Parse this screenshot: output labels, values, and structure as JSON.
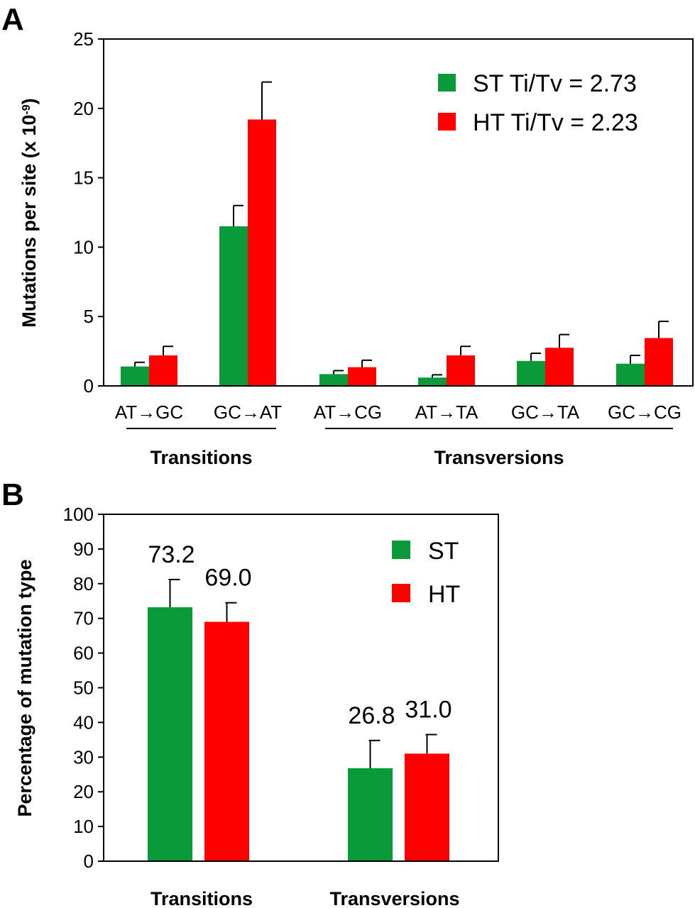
{
  "chart_data": [
    {
      "panel": "A",
      "type": "bar",
      "ylabel": "Mutations per site (x 10",
      "ylabel_exp": "-9",
      "ylabel_close": ")",
      "ylim": [
        0,
        25
      ],
      "yticks": [
        "0",
        "5",
        "10",
        "15",
        "20",
        "25"
      ],
      "categories": [
        "AT→GC",
        "GC→AT",
        "AT→CG",
        "AT→TA",
        "GC→TA",
        "GC→CG"
      ],
      "groups": [
        {
          "label": "Transitions",
          "from": 0,
          "to": 1
        },
        {
          "label": "Transversions",
          "from": 2,
          "to": 5
        }
      ],
      "series": [
        {
          "name": "ST Ti/Tv = 2.73",
          "color": "#0a9a3a",
          "values": [
            1.4,
            11.5,
            0.85,
            0.6,
            1.8,
            1.6
          ],
          "errors": [
            0.3,
            1.5,
            0.25,
            0.2,
            0.55,
            0.6
          ]
        },
        {
          "name": "HT Ti/Tv = 2.23",
          "color": "#ff0000",
          "values": [
            2.2,
            19.2,
            1.35,
            2.2,
            2.75,
            3.45
          ],
          "errors": [
            0.65,
            2.7,
            0.5,
            0.65,
            0.95,
            1.2
          ]
        }
      ],
      "legend_position": "top-right"
    },
    {
      "panel": "B",
      "type": "bar",
      "ylabel": "Percentage of mutation type",
      "ylim": [
        0,
        100
      ],
      "yticks": [
        "0",
        "10",
        "20",
        "30",
        "40",
        "50",
        "60",
        "70",
        "80",
        "90",
        "100"
      ],
      "categories": [
        "Transitions",
        "Transversions"
      ],
      "series": [
        {
          "name": "ST",
          "color": "#0a9a3a",
          "values": [
            73.2,
            26.8
          ],
          "errors": [
            8.0,
            8.0
          ],
          "labels": [
            "73.2",
            "26.8"
          ]
        },
        {
          "name": "HT",
          "color": "#ff0000",
          "values": [
            69.0,
            31.0
          ],
          "errors": [
            5.5,
            5.5
          ],
          "labels": [
            "69.0",
            "31.0"
          ]
        }
      ],
      "legend_position": "top-right"
    }
  ]
}
